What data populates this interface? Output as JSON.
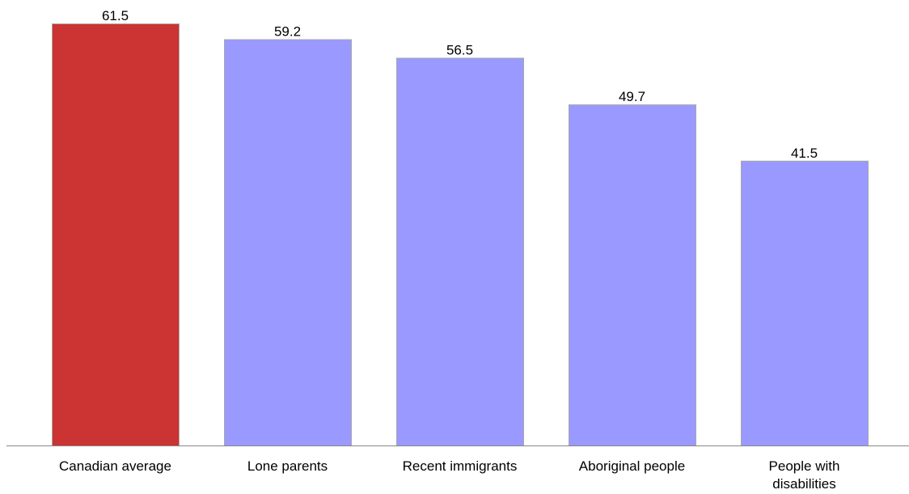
{
  "chart_data": {
    "type": "bar",
    "categories": [
      "Canadian average",
      "Lone parents",
      "Recent immigrants",
      "Aboriginal people",
      "People with disabilities"
    ],
    "category_lines": [
      [
        "Canadian average"
      ],
      [
        "Lone parents"
      ],
      [
        "Recent immigrants"
      ],
      [
        "Aboriginal people"
      ],
      [
        "People with",
        "disabilities"
      ]
    ],
    "values": [
      61.5,
      59.2,
      56.5,
      49.7,
      41.5
    ],
    "data_labels": [
      "61.5",
      "59.2",
      "56.5",
      "49.7",
      "41.5"
    ],
    "bar_colors": [
      "#cc3333",
      "#9999ff",
      "#9999ff",
      "#9999ff",
      "#9999ff"
    ],
    "bar_border_color": "#a8a8a8",
    "axis_color": "#888888",
    "ylim": [
      0,
      61.5
    ],
    "title": "",
    "xlabel": "",
    "ylabel": "",
    "grid": false,
    "legend": "none"
  }
}
